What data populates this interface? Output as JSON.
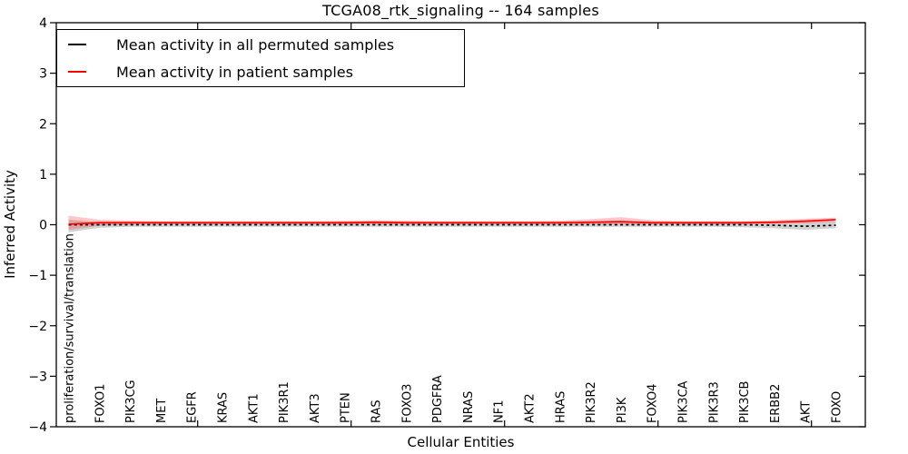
{
  "chart_data": {
    "type": "line",
    "title": "TCGA08_rtk_signaling -- 164 samples",
    "xlabel": "Cellular Entities",
    "ylabel": "Inferred Activity",
    "ylim": [
      -4,
      4
    ],
    "grid": false,
    "legend_position": "upper left",
    "yticks": [
      -4,
      -3,
      -2,
      -1,
      0,
      1,
      2,
      3,
      4
    ],
    "ytick_labels": [
      "−4",
      "−3",
      "−2",
      "−1",
      "0",
      "1",
      "2",
      "3",
      "4"
    ],
    "xtick_indices": [
      4,
      9,
      14,
      19,
      24
    ],
    "categories": [
      "proliferation/survival/translation",
      "FOXO1",
      "PIK3CG",
      "MET",
      "EGFR",
      "KRAS",
      "AKT1",
      "PIK3R1",
      "AKT3",
      "PTEN",
      "RAS",
      "FOXO3",
      "PDGFRA",
      "NRAS",
      "NF1",
      "AKT2",
      "HRAS",
      "PIK3R2",
      "PI3K",
      "FOXO4",
      "PIK3CA",
      "PIK3R3",
      "PIK3CB",
      "ERBB2",
      "AKT",
      "FOXO"
    ],
    "series": [
      {
        "name": "Mean activity in all permuted samples",
        "color": "#000000",
        "style": "dashed",
        "values": [
          0.0,
          0.0,
          0.0,
          0.0,
          0.0,
          0.0,
          0.0,
          0.0,
          0.0,
          0.0,
          0.0,
          0.0,
          0.0,
          0.0,
          0.0,
          0.0,
          0.0,
          0.0,
          0.0,
          0.0,
          0.0,
          0.0,
          0.0,
          -0.01,
          -0.03,
          -0.01
        ]
      },
      {
        "name": "Mean activity in patient samples",
        "color": "#ff0000",
        "style": "solid",
        "values": [
          0.01,
          0.04,
          0.04,
          0.04,
          0.04,
          0.04,
          0.04,
          0.04,
          0.04,
          0.04,
          0.05,
          0.04,
          0.04,
          0.04,
          0.04,
          0.04,
          0.04,
          0.05,
          0.06,
          0.04,
          0.04,
          0.04,
          0.04,
          0.05,
          0.07,
          0.1
        ]
      }
    ],
    "bands": [
      {
        "name": "permuted-samples-range",
        "color": "#999999",
        "opacity": 0.45,
        "upper": [
          0.1,
          0.05,
          0.04,
          0.04,
          0.04,
          0.04,
          0.04,
          0.04,
          0.04,
          0.04,
          0.04,
          0.04,
          0.04,
          0.04,
          0.04,
          0.04,
          0.04,
          0.04,
          0.04,
          0.04,
          0.04,
          0.04,
          0.04,
          0.04,
          0.05,
          0.06
        ],
        "lower": [
          -0.15,
          -0.06,
          -0.04,
          -0.04,
          -0.04,
          -0.04,
          -0.04,
          -0.04,
          -0.04,
          -0.04,
          -0.04,
          -0.04,
          -0.04,
          -0.04,
          -0.04,
          -0.04,
          -0.04,
          -0.04,
          -0.04,
          -0.04,
          -0.04,
          -0.04,
          -0.05,
          -0.07,
          -0.1,
          -0.07
        ]
      },
      {
        "name": "patient-samples-range",
        "color": "#ff0000",
        "opacity": 0.22,
        "upper": [
          0.18,
          0.1,
          0.08,
          0.07,
          0.07,
          0.07,
          0.07,
          0.07,
          0.07,
          0.08,
          0.09,
          0.08,
          0.07,
          0.07,
          0.07,
          0.07,
          0.08,
          0.11,
          0.15,
          0.09,
          0.07,
          0.07,
          0.07,
          0.09,
          0.12,
          0.14
        ],
        "lower": [
          -0.1,
          -0.02,
          0.0,
          0.01,
          0.01,
          0.01,
          0.01,
          0.01,
          0.01,
          0.01,
          0.01,
          0.01,
          0.01,
          0.01,
          0.01,
          0.01,
          0.01,
          0.01,
          0.01,
          0.01,
          0.01,
          0.01,
          0.01,
          0.02,
          0.03,
          0.05
        ]
      }
    ]
  }
}
